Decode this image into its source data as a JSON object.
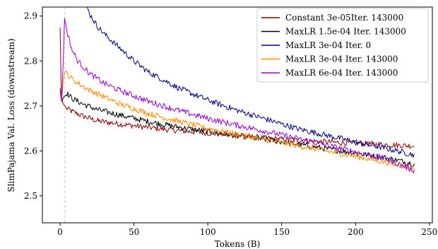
{
  "chart_data": {
    "type": "line",
    "title": "",
    "xlabel": "Tokens (B)",
    "ylabel": "SlimPajama Val. Loss (downstream)",
    "xlim": [
      -12,
      252
    ],
    "ylim": [
      2.44,
      2.92
    ],
    "xticks": [
      0,
      50,
      100,
      150,
      200,
      250
    ],
    "yticks": [
      2.5,
      2.6,
      2.7,
      2.8,
      2.9
    ],
    "grid": false,
    "legend_position": "top-right",
    "vline_x": 3.2,
    "series": [
      {
        "name": "Constant 3e-05Iter. 143000",
        "color": "#8b0000",
        "points": [
          [
            0,
            2.875
          ],
          [
            0.3,
            2.82
          ],
          [
            0.6,
            2.76
          ],
          [
            1,
            2.72
          ],
          [
            2,
            2.705
          ],
          [
            4,
            2.695
          ],
          [
            8,
            2.688
          ],
          [
            15,
            2.678
          ],
          [
            25,
            2.667
          ],
          [
            40,
            2.66
          ],
          [
            60,
            2.652
          ],
          [
            80,
            2.645
          ],
          [
            100,
            2.64
          ],
          [
            120,
            2.634
          ],
          [
            140,
            2.628
          ],
          [
            160,
            2.624
          ],
          [
            180,
            2.62
          ],
          [
            200,
            2.617
          ],
          [
            220,
            2.614
          ],
          [
            240,
            2.611
          ]
        ]
      },
      {
        "name": "MaxLR 1.5e-04 Iter. 143000",
        "color": "#000000",
        "points": [
          [
            0,
            2.735
          ],
          [
            1,
            2.71
          ],
          [
            2.5,
            2.72
          ],
          [
            4,
            2.73
          ],
          [
            8,
            2.717
          ],
          [
            15,
            2.705
          ],
          [
            25,
            2.692
          ],
          [
            40,
            2.68
          ],
          [
            60,
            2.665
          ],
          [
            80,
            2.653
          ],
          [
            100,
            2.643
          ],
          [
            120,
            2.634
          ],
          [
            140,
            2.625
          ],
          [
            160,
            2.615
          ],
          [
            180,
            2.605
          ],
          [
            200,
            2.595
          ],
          [
            220,
            2.585
          ],
          [
            240,
            2.571
          ]
        ]
      },
      {
        "name": "MaxLR 3e-04 Iter. 0",
        "color": "#00008b",
        "points": [
          [
            17,
            2.93
          ],
          [
            20,
            2.905
          ],
          [
            25,
            2.878
          ],
          [
            30,
            2.86
          ],
          [
            40,
            2.83
          ],
          [
            50,
            2.8
          ],
          [
            60,
            2.775
          ],
          [
            70,
            2.758
          ],
          [
            80,
            2.74
          ],
          [
            100,
            2.713
          ],
          [
            120,
            2.69
          ],
          [
            140,
            2.67
          ],
          [
            160,
            2.65
          ],
          [
            180,
            2.635
          ],
          [
            200,
            2.62
          ],
          [
            220,
            2.606
          ],
          [
            240,
            2.591
          ]
        ]
      },
      {
        "name": "MaxLR 3e-04 Iter. 143000",
        "color": "#ff8c00",
        "points": [
          [
            0,
            2.73
          ],
          [
            1,
            2.71
          ],
          [
            2,
            2.75
          ],
          [
            3,
            2.775
          ],
          [
            5,
            2.77
          ],
          [
            10,
            2.755
          ],
          [
            20,
            2.735
          ],
          [
            30,
            2.72
          ],
          [
            40,
            2.705
          ],
          [
            60,
            2.683
          ],
          [
            80,
            2.666
          ],
          [
            100,
            2.65
          ],
          [
            120,
            2.637
          ],
          [
            140,
            2.624
          ],
          [
            160,
            2.612
          ],
          [
            180,
            2.6
          ],
          [
            200,
            2.588
          ],
          [
            220,
            2.575
          ],
          [
            240,
            2.561
          ]
        ]
      },
      {
        "name": "MaxLR 6e-04 Iter. 143000",
        "color": "#9400d3",
        "points": [
          [
            0,
            2.74
          ],
          [
            1,
            2.71
          ],
          [
            2,
            2.79
          ],
          [
            3,
            2.895
          ],
          [
            4,
            2.875
          ],
          [
            6,
            2.85
          ],
          [
            8,
            2.825
          ],
          [
            12,
            2.8
          ],
          [
            20,
            2.772
          ],
          [
            30,
            2.75
          ],
          [
            40,
            2.735
          ],
          [
            60,
            2.71
          ],
          [
            80,
            2.69
          ],
          [
            100,
            2.672
          ],
          [
            120,
            2.657
          ],
          [
            140,
            2.643
          ],
          [
            160,
            2.628
          ],
          [
            180,
            2.613
          ],
          [
            200,
            2.598
          ],
          [
            220,
            2.583
          ],
          [
            240,
            2.556
          ]
        ]
      }
    ]
  }
}
